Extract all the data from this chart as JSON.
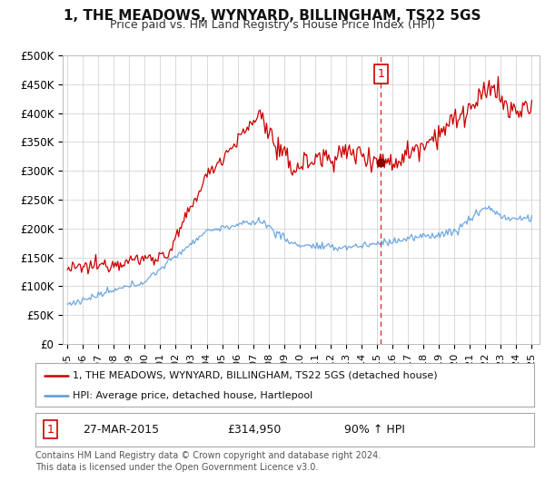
{
  "title": "1, THE MEADOWS, WYNYARD, BILLINGHAM, TS22 5GS",
  "subtitle": "Price paid vs. HM Land Registry's House Price Index (HPI)",
  "plot_bg_color": "#ffffff",
  "fig_bg_color": "#ffffff",
  "ylim": [
    0,
    500000
  ],
  "yticks": [
    0,
    50000,
    100000,
    150000,
    200000,
    250000,
    300000,
    350000,
    400000,
    450000,
    500000
  ],
  "ytick_labels": [
    "£0",
    "£50K",
    "£100K",
    "£150K",
    "£200K",
    "£250K",
    "£300K",
    "£350K",
    "£400K",
    "£450K",
    "£500K"
  ],
  "xlim_start": 1994.7,
  "xlim_end": 2025.5,
  "xticks": [
    1995,
    1996,
    1997,
    1998,
    1999,
    2000,
    2001,
    2002,
    2003,
    2004,
    2005,
    2006,
    2007,
    2008,
    2009,
    2010,
    2011,
    2012,
    2013,
    2014,
    2015,
    2016,
    2017,
    2018,
    2019,
    2020,
    2021,
    2022,
    2023,
    2024,
    2025
  ],
  "red_line_color": "#cc0000",
  "blue_line_color": "#5599dd",
  "vline_color": "#cc0000",
  "vline_x": 2015.25,
  "purchase_x": 2015.25,
  "purchase_y": 314950,
  "marker_label": "1",
  "legend_label_red": "1, THE MEADOWS, WYNYARD, BILLINGHAM, TS22 5GS (detached house)",
  "legend_label_blue": "HPI: Average price, detached house, Hartlepool",
  "annotation_label": "1",
  "annotation_date": "27-MAR-2015",
  "annotation_price": "£314,950",
  "annotation_hpi": "90% ↑ HPI",
  "footer": "Contains HM Land Registry data © Crown copyright and database right 2024.\nThis data is licensed under the Open Government Licence v3.0.",
  "title_fontsize": 11,
  "subtitle_fontsize": 9,
  "tick_fontsize": 8.5,
  "grid_color": "#cccccc"
}
